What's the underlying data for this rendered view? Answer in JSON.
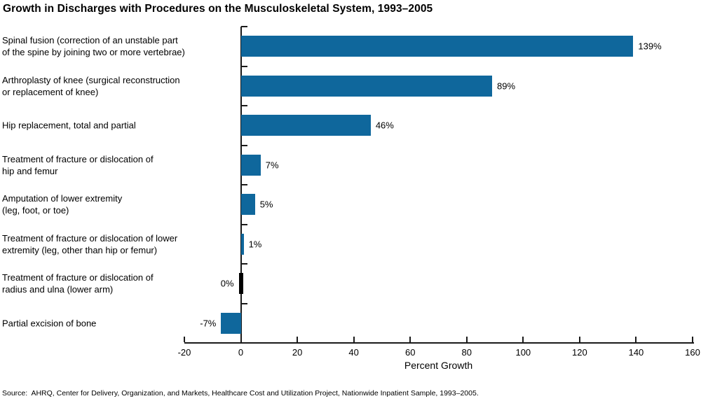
{
  "chart_data": {
    "type": "bar",
    "orientation": "horizontal",
    "title": "Growth in Discharges with Procedures on the Musculoskeletal System, 1993–2005",
    "xlabel": "Percent Growth",
    "xlim": [
      -20,
      160
    ],
    "xticks": [
      -20,
      0,
      20,
      40,
      60,
      80,
      100,
      120,
      140,
      160
    ],
    "grid": false,
    "legend": "none",
    "bar_color": "#0f679c",
    "zero_bar_color": "#000000",
    "categories": [
      {
        "lines": [
          "Spinal fusion (correction of an unstable part",
          "of the spine by joining two or more vertebrae)"
        ],
        "value": 139,
        "value_label": "139%"
      },
      {
        "lines": [
          "Arthroplasty of knee (surgical reconstruction",
          "or replacement of knee)"
        ],
        "value": 89,
        "value_label": "89%"
      },
      {
        "lines": [
          "Hip replacement, total and partial"
        ],
        "value": 46,
        "value_label": "46%"
      },
      {
        "lines": [
          "Treatment of fracture or dislocation of",
          "hip and femur"
        ],
        "value": 7,
        "value_label": "7%"
      },
      {
        "lines": [
          "Amputation of lower extremity",
          "(leg, foot, or toe)"
        ],
        "value": 5,
        "value_label": "5%"
      },
      {
        "lines": [
          "Treatment of fracture or dislocation of lower",
          "extremity (leg, other than hip or femur)"
        ],
        "value": 1,
        "value_label": "1%"
      },
      {
        "lines": [
          "Treatment of fracture or dislocation of",
          "radius and ulna (lower arm)"
        ],
        "value": 0,
        "value_label": "0%"
      },
      {
        "lines": [
          "Partial excision of bone"
        ],
        "value": -7,
        "value_label": "-7%"
      }
    ],
    "source": "Source:  AHRQ, Center for Delivery, Organization, and Markets, Healthcare Cost and Utilization Project, Nationwide Inpatient Sample, 1993–2005."
  }
}
